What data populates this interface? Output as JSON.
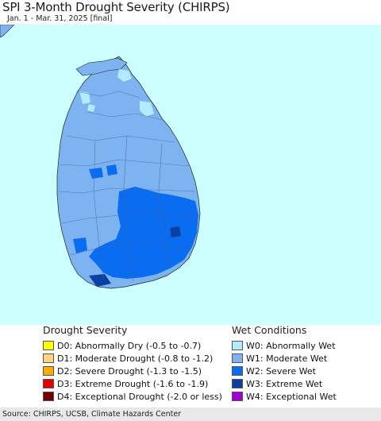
{
  "header": {
    "title": "SPI 3-Month Drought Severity (CHIRPS)",
    "subtitle": "Jan. 1 - Mar. 31, 2025 [final]"
  },
  "map": {
    "sea_color": "#ccffff",
    "land_base_color": "#7eb3f2"
  },
  "legend": {
    "drought": {
      "heading": "Drought Severity",
      "items": [
        {
          "label": "D0: Abnormally Dry (-0.5 to -0.7)",
          "color": "#ffff00"
        },
        {
          "label": "D1: Moderate Drought (-0.8 to -1.2)",
          "color": "#fcd37f"
        },
        {
          "label": "D2: Severe Drought (-1.3 to -1.5)",
          "color": "#ffaa00"
        },
        {
          "label": "D3: Extreme Drought (-1.6 to -1.9)",
          "color": "#e60000"
        },
        {
          "label": "D4: Exceptional Drought (-2.0 or less)",
          "color": "#730000"
        }
      ]
    },
    "wet": {
      "heading": "Wet Conditions",
      "items": [
        {
          "label": "W0: Abnormally Wet",
          "color": "#b2ebff"
        },
        {
          "label": "W1: Moderate Wet",
          "color": "#7eb3f2"
        },
        {
          "label": "W2: Severe Wet",
          "color": "#0a6cf0"
        },
        {
          "label": "W3: Extreme Wet",
          "color": "#0a40a0"
        },
        {
          "label": "W4: Exceptional Wet",
          "color": "#a000d6"
        }
      ]
    }
  },
  "footer": {
    "source": "Source: CHIRPS, UCSB, Climate Hazards Center"
  }
}
